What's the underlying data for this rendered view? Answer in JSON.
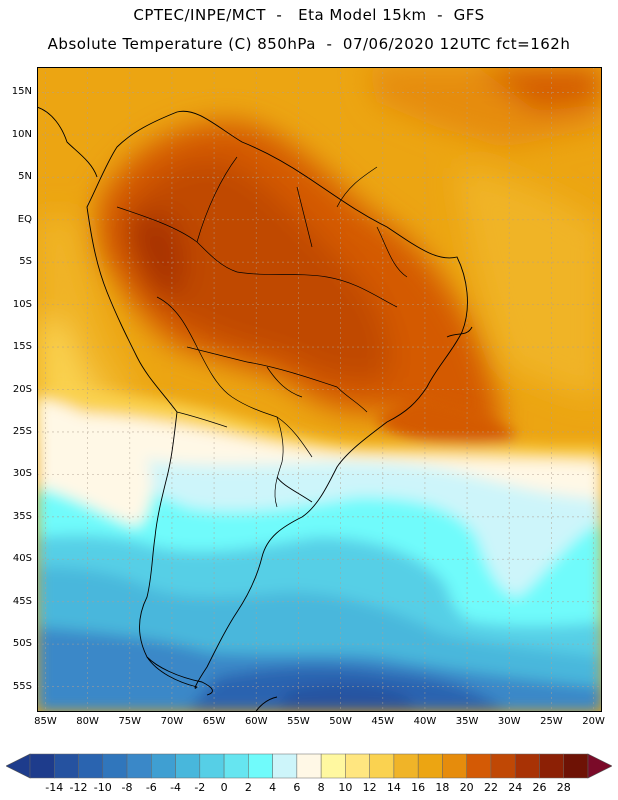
{
  "header": {
    "line1": "CPTEC/INPE/MCT  -   Eta Model 15km  -  GFS",
    "line2": "Absolute Temperature (C) 850hPa  -  07/06/2020 12UTC fct=162h"
  },
  "map": {
    "lon_range": [
      -86,
      -19
    ],
    "lat_range": [
      18,
      -58
    ],
    "lat_labels": [
      "15N",
      "10N",
      "5N",
      "EQ",
      "5S",
      "10S",
      "15S",
      "20S",
      "25S",
      "30S",
      "35S",
      "40S",
      "45S",
      "50S",
      "55S"
    ],
    "lat_values": [
      15,
      10,
      5,
      0,
      -5,
      -10,
      -15,
      -20,
      -25,
      -30,
      -35,
      -40,
      -45,
      -50,
      -55
    ],
    "lon_labels": [
      "85W",
      "80W",
      "75W",
      "70W",
      "65W",
      "60W",
      "55W",
      "50W",
      "45W",
      "40W",
      "35W",
      "30W",
      "25W",
      "20W"
    ],
    "lon_values": [
      -85,
      -80,
      -75,
      -70,
      -65,
      -60,
      -55,
      -50,
      -45,
      -40,
      -35,
      -30,
      -25,
      -20
    ]
  },
  "colorbar": {
    "labels": [
      "-14",
      "-12",
      "-10",
      "-8",
      "-6",
      "-4",
      "-2",
      "0",
      "2",
      "4",
      "6",
      "8",
      "10",
      "12",
      "14",
      "16",
      "18",
      "20",
      "22",
      "24",
      "26",
      "28"
    ],
    "colors": [
      "#1e3c8c",
      "#2552a0",
      "#2a64b0",
      "#3076bc",
      "#3a88c8",
      "#3f9fd2",
      "#48b7dc",
      "#56cfe6",
      "#66e5f0",
      "#70fbfb",
      "#cdf5fa",
      "#fff8e6",
      "#fff8a0",
      "#ffe680",
      "#fad250",
      "#f0b428",
      "#eca512",
      "#e68c0c",
      "#d45a05",
      "#c04805",
      "#a83205",
      "#8c2005",
      "#6e1205"
    ],
    "left_arrow_color": "#1e3c8c",
    "right_arrow_color": "#7a0a28"
  }
}
